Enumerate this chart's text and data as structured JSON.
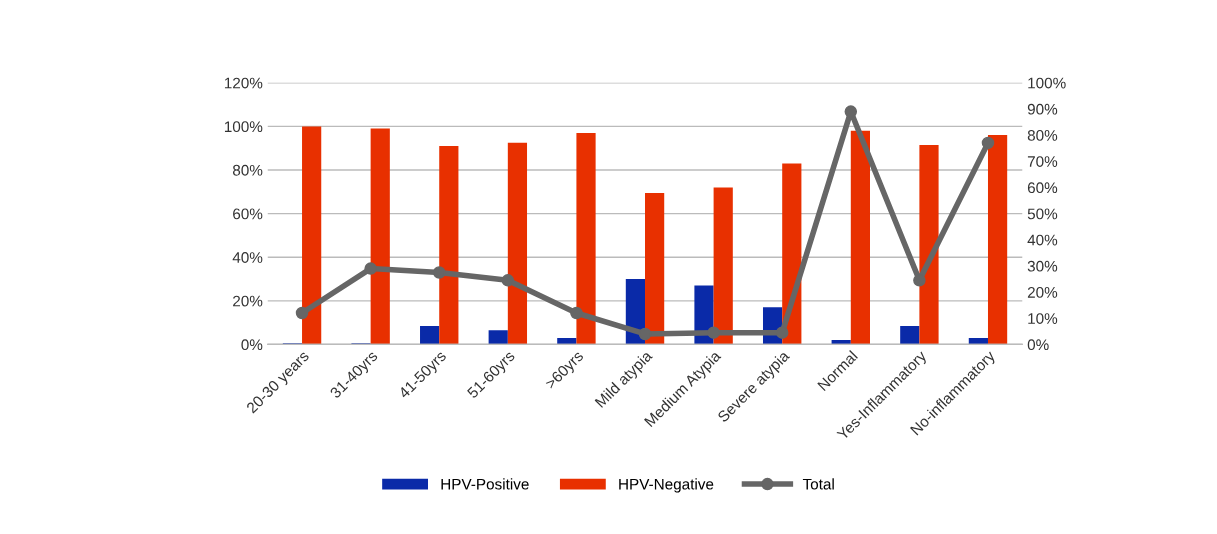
{
  "chart_data": {
    "type": "bar",
    "categories": [
      "20-30 years",
      "31-40yrs",
      "41-50yrs",
      "51-60yrs",
      ">60yrs",
      "Mild atypia",
      "Medium Atypia",
      "Severe atypia",
      "Normal",
      "Yes-Inflammatory",
      "No-inflammatory"
    ],
    "series": [
      {
        "name": "HPV-Positive",
        "color": "#0a2aa8",
        "values": [
          0.5,
          0.5,
          8.5,
          6.5,
          3,
          30,
          27,
          17,
          2,
          8.5,
          3
        ]
      },
      {
        "name": "HPV-Negative",
        "color": "#e83000",
        "values": [
          100,
          99,
          91,
          92.5,
          97,
          69.5,
          72,
          83,
          98,
          91.5,
          96
        ]
      },
      {
        "name": "Total",
        "type": "line",
        "axis": "y2",
        "color": "#666666",
        "marker": "circle",
        "values": [
          12,
          29,
          27.5,
          24.5,
          12,
          4,
          4.5,
          4.5,
          89,
          24.5,
          77
        ]
      }
    ],
    "ylim": [
      0,
      120
    ],
    "yticks": [
      {
        "value": 0,
        "label": "0%"
      },
      {
        "value": 20,
        "label": "20%"
      },
      {
        "value": 40,
        "label": "40%"
      },
      {
        "value": 60,
        "label": "60%"
      },
      {
        "value": 80,
        "label": "80%"
      },
      {
        "value": 100,
        "label": "100%"
      },
      {
        "value": 120,
        "label": "120%"
      }
    ],
    "y2lim": [
      0,
      100
    ],
    "y2ticks": [
      {
        "value": 0,
        "label": "0%"
      },
      {
        "value": 10,
        "label": "10%"
      },
      {
        "value": 20,
        "label": "20%"
      },
      {
        "value": 30,
        "label": "30%"
      },
      {
        "value": 40,
        "label": "40%"
      },
      {
        "value": 50,
        "label": "50%"
      },
      {
        "value": 60,
        "label": "60%"
      },
      {
        "value": 70,
        "label": "70%"
      },
      {
        "value": 80,
        "label": "80%"
      },
      {
        "value": 90,
        "label": "90%"
      },
      {
        "value": 100,
        "label": "100%"
      }
    ],
    "grid": "y",
    "legend": "bottom"
  }
}
